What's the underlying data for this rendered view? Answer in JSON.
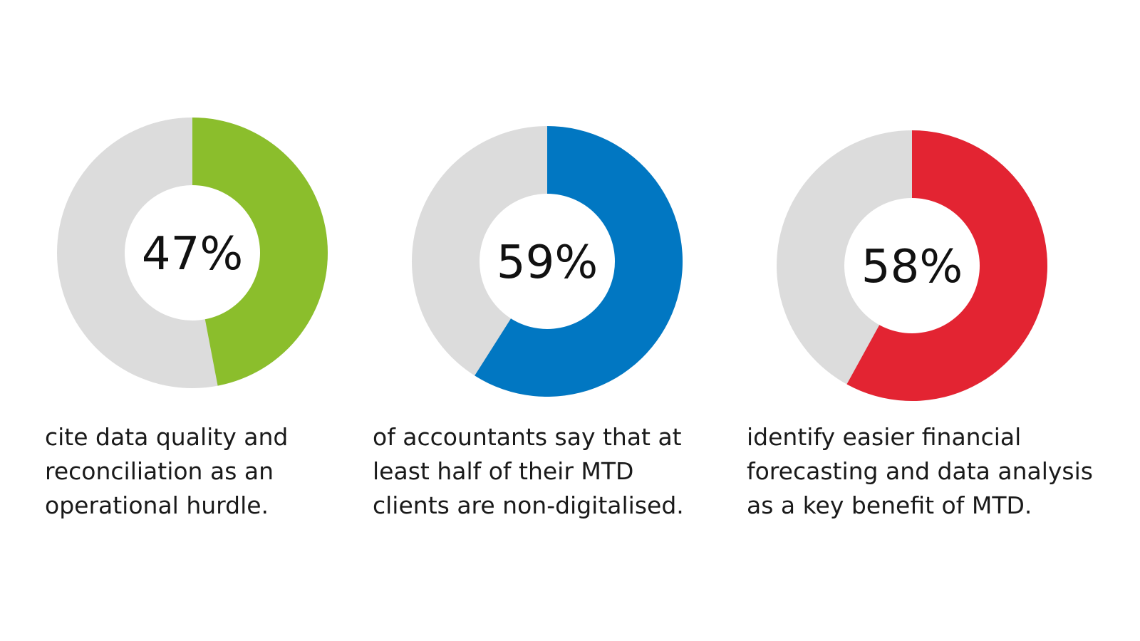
{
  "chart_data": [
    {
      "type": "pie",
      "values": [
        47,
        53
      ],
      "label": "47%",
      "caption": "cite data quality and reconciliation as an operational hurdle.",
      "color": "#8bbe2c",
      "track_color": "#dcdcdc"
    },
    {
      "type": "pie",
      "values": [
        59,
        41
      ],
      "label": "59%",
      "caption": "of accountants say that at least half of their MTD clients are non-digitalised.",
      "color": "#0177c2",
      "track_color": "#dcdcdc"
    },
    {
      "type": "pie",
      "values": [
        58,
        42
      ],
      "label": "58%",
      "caption": "identify easier financial forecasting and data analysis as a key benefit of MTD.",
      "color": "#e32432",
      "track_color": "#dcdcdc"
    }
  ]
}
